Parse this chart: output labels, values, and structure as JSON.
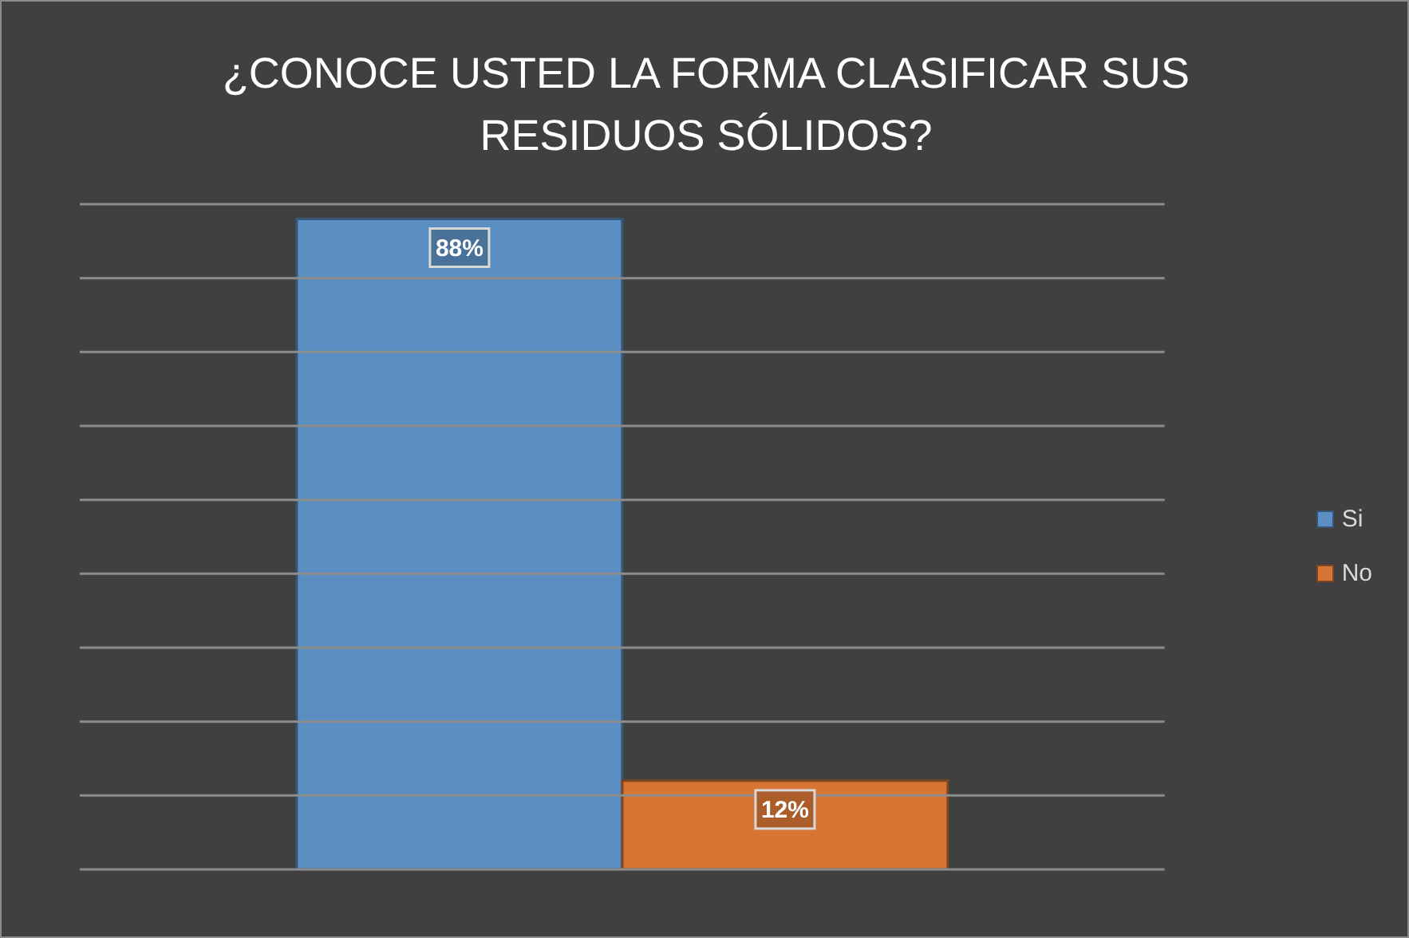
{
  "chart_data": {
    "type": "bar",
    "title": "¿CONOCE USTED LA FORMA CLASIFICAR SUS RESIDUOS SÓLIDOS?",
    "categories": [
      null
    ],
    "series": [
      {
        "name": "Si",
        "color": "#5b8ec2",
        "values": [
          88
        ],
        "value_labels": [
          "88%"
        ]
      },
      {
        "name": "No",
        "color": "#d77534",
        "values": [
          12
        ],
        "value_labels": [
          "12%"
        ]
      }
    ],
    "ylim": [
      0,
      90
    ],
    "yticks": [
      {
        "value": 0,
        "label": null
      },
      {
        "value": 10,
        "label": null
      },
      {
        "value": 20,
        "label": null
      },
      {
        "value": 30,
        "label": null
      },
      {
        "value": 40,
        "label": null
      },
      {
        "value": 50,
        "label": null
      },
      {
        "value": 60,
        "label": null
      },
      {
        "value": 70,
        "label": null
      },
      {
        "value": 80,
        "label": null
      },
      {
        "value": 90,
        "label": null
      }
    ],
    "grid": "y",
    "legend": "right",
    "tick_labels": false
  }
}
